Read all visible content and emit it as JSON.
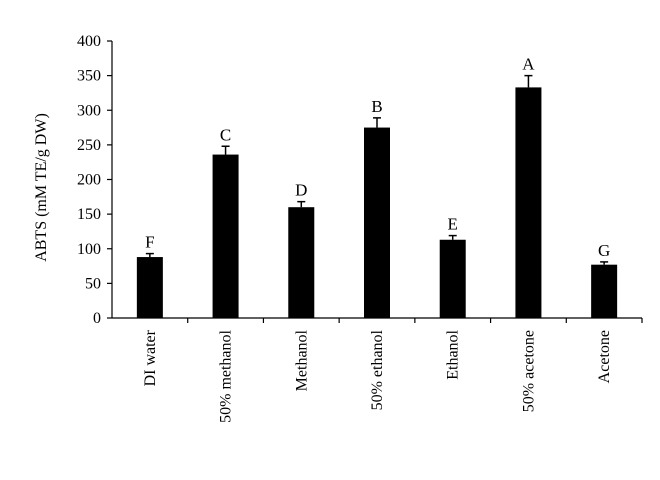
{
  "chart_data": {
    "type": "bar",
    "categories": [
      "DI water",
      "50% methanol",
      "Methanol",
      "50% ethanol",
      "Ethanol",
      "50% acetone",
      "Acetone"
    ],
    "values": [
      88,
      236,
      160,
      275,
      113,
      333,
      77
    ],
    "errors": [
      5,
      12,
      8,
      14,
      6,
      17,
      4
    ],
    "letters": [
      "F",
      "C",
      "D",
      "B",
      "E",
      "A",
      "G"
    ],
    "title": "",
    "xlabel": "",
    "ylabel": "ABTS (mM TE/g DW)",
    "ylim": [
      0,
      400
    ],
    "yticks": [
      0,
      50,
      100,
      150,
      200,
      250,
      300,
      350,
      400
    ],
    "bar_color": "#000000",
    "grid": false,
    "legend": "none"
  }
}
